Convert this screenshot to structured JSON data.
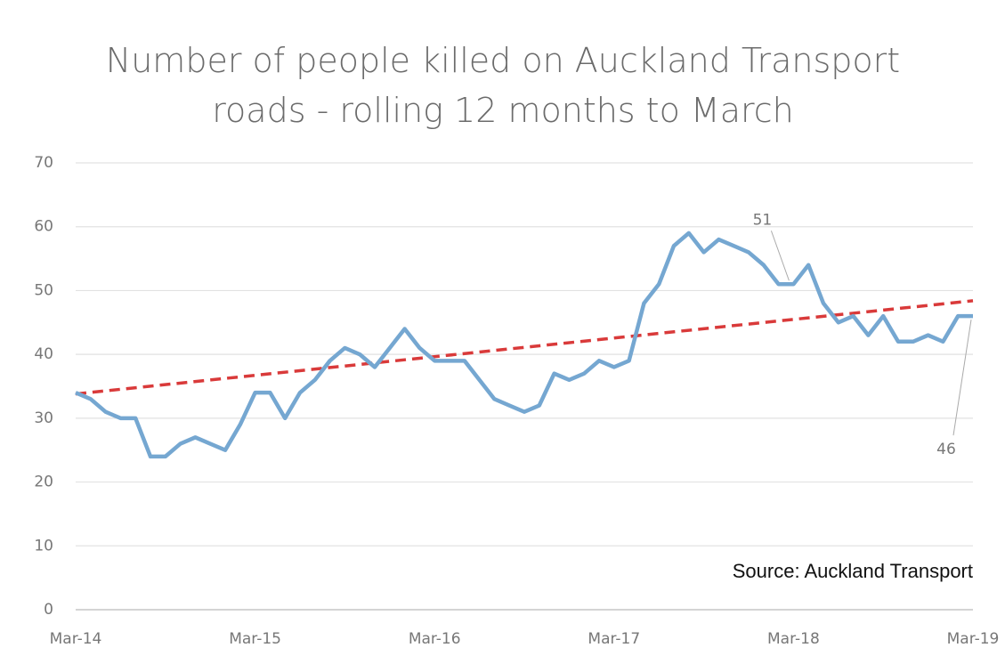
{
  "chart_data": {
    "type": "line",
    "title": "Number of people killed on Auckland Transport roads - rolling 12 months to March",
    "categories": [
      "Mar-14",
      null,
      null,
      null,
      null,
      null,
      null,
      null,
      null,
      null,
      null,
      null,
      "Mar-15",
      null,
      null,
      null,
      null,
      null,
      null,
      null,
      null,
      null,
      null,
      null,
      "Mar-16",
      null,
      null,
      null,
      null,
      null,
      null,
      null,
      null,
      null,
      null,
      null,
      "Mar-17",
      null,
      null,
      null,
      null,
      null,
      null,
      null,
      null,
      null,
      null,
      null,
      "Mar-18",
      null,
      null,
      null,
      null,
      null,
      null,
      null,
      null,
      null,
      null,
      null,
      "Mar-19"
    ],
    "series": [
      {
        "color": "#75a7d1",
        "values": [
          34,
          33,
          31,
          30,
          30,
          24,
          24,
          26,
          27,
          26,
          25,
          29,
          34,
          34,
          30,
          34,
          36,
          39,
          41,
          40,
          38,
          41,
          44,
          41,
          39,
          39,
          39,
          36,
          33,
          32,
          31,
          32,
          37,
          36,
          37,
          39,
          38,
          39,
          48,
          51,
          57,
          59,
          56,
          58,
          57,
          56,
          54,
          51,
          51,
          54,
          48,
          45,
          46,
          43,
          46,
          42,
          42,
          43,
          42,
          46,
          46
        ],
        "value_labels": [
          null,
          null,
          null,
          null,
          null,
          null,
          null,
          null,
          null,
          null,
          null,
          null,
          null,
          null,
          null,
          null,
          null,
          null,
          null,
          null,
          null,
          null,
          null,
          null,
          null,
          null,
          null,
          null,
          null,
          null,
          null,
          null,
          null,
          null,
          null,
          null,
          null,
          null,
          null,
          null,
          null,
          null,
          null,
          null,
          null,
          null,
          null,
          null,
          "51",
          null,
          null,
          null,
          null,
          null,
          null,
          null,
          null,
          null,
          null,
          null,
          "46"
        ]
      }
    ],
    "trend": {
      "color": "#d93a3a",
      "start": 33.8,
      "end": 48.4
    },
    "ylim": [
      0,
      70
    ],
    "yticks": [
      0,
      10,
      20,
      30,
      40,
      50,
      60,
      70
    ],
    "grid": true,
    "source": "Source: Auckland Transport"
  }
}
